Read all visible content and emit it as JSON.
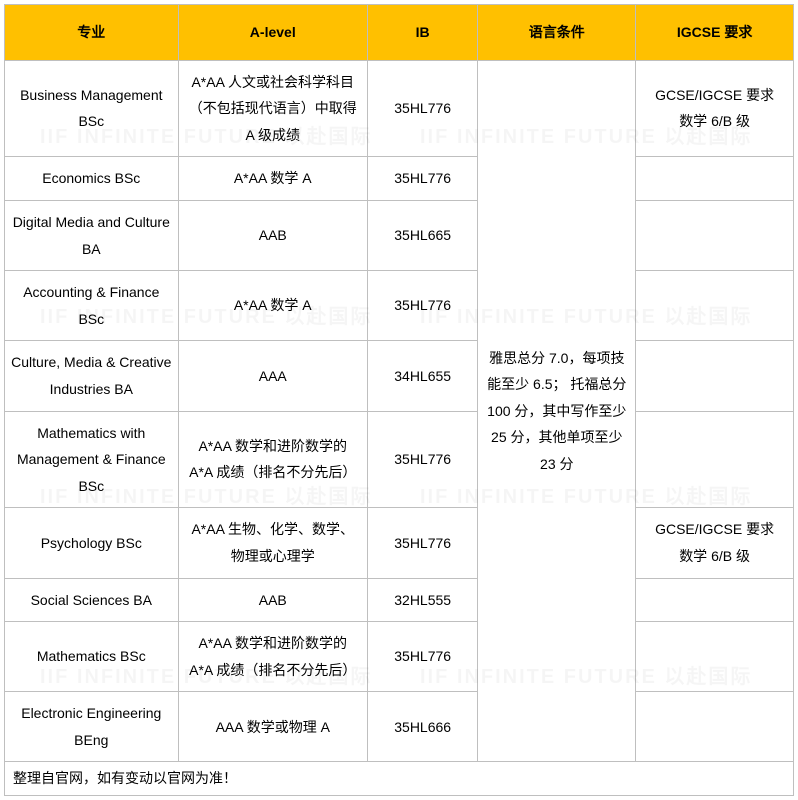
{
  "table": {
    "header_bg": "#ffc000",
    "border_color": "#bfbfbf",
    "columns": [
      {
        "key": "major",
        "label": "专业",
        "width": "22%"
      },
      {
        "key": "alevel",
        "label": "A-level",
        "width": "24%"
      },
      {
        "key": "ib",
        "label": "IB",
        "width": "14%"
      },
      {
        "key": "lang",
        "label": "语言条件",
        "width": "20%"
      },
      {
        "key": "igcse",
        "label": "IGCSE 要求",
        "width": "20%"
      }
    ],
    "lang_requirement": "雅思总分 7.0，每项技能至少 6.5； 托福总分 100 分，其中写作至少 25 分，其他单项至少 23 分",
    "rows": [
      {
        "major": "Business Management BSc",
        "alevel": "A*AA 人文或社会科学科目（不包括现代语言）中取得 A 级成绩",
        "ib": "35HL776",
        "igcse": "GCSE/IGCSE 要求\n数学 6/B 级"
      },
      {
        "major": "Economics BSc",
        "alevel": "A*AA 数学 A",
        "ib": "35HL776",
        "igcse": ""
      },
      {
        "major": "Digital Media and Culture BA",
        "alevel": "AAB",
        "ib": "35HL665",
        "igcse": ""
      },
      {
        "major": "Accounting & Finance BSc",
        "alevel": "A*AA 数学 A",
        "ib": "35HL776",
        "igcse": ""
      },
      {
        "major": "Culture, Media & Creative Industries BA",
        "alevel": "AAA",
        "ib": "34HL655",
        "igcse": ""
      },
      {
        "major": "Mathematics with Management & Finance BSc",
        "alevel": "A*AA 数学和进阶数学的 A*A 成绩（排名不分先后）",
        "ib": "35HL776",
        "igcse": ""
      },
      {
        "major": "Psychology BSc",
        "alevel": "A*AA 生物、化学、数学、物理或心理学",
        "ib": "35HL776",
        "igcse": "GCSE/IGCSE 要求\n数学 6/B 级"
      },
      {
        "major": "Social Sciences BA",
        "alevel": "AAB",
        "ib": "32HL555",
        "igcse": ""
      },
      {
        "major": "Mathematics BSc",
        "alevel": "A*AA 数学和进阶数学的 A*A 成绩（排名不分先后）",
        "ib": "35HL776",
        "igcse": ""
      },
      {
        "major": "Electronic Engineering BEng",
        "alevel": "AAA 数学或物理 A",
        "ib": "35HL666",
        "igcse": ""
      }
    ],
    "footer_note": "整理自官网，如有变动以官网为准！"
  },
  "watermark_text": "IIF INFINITE FUTURE 以赴国际"
}
